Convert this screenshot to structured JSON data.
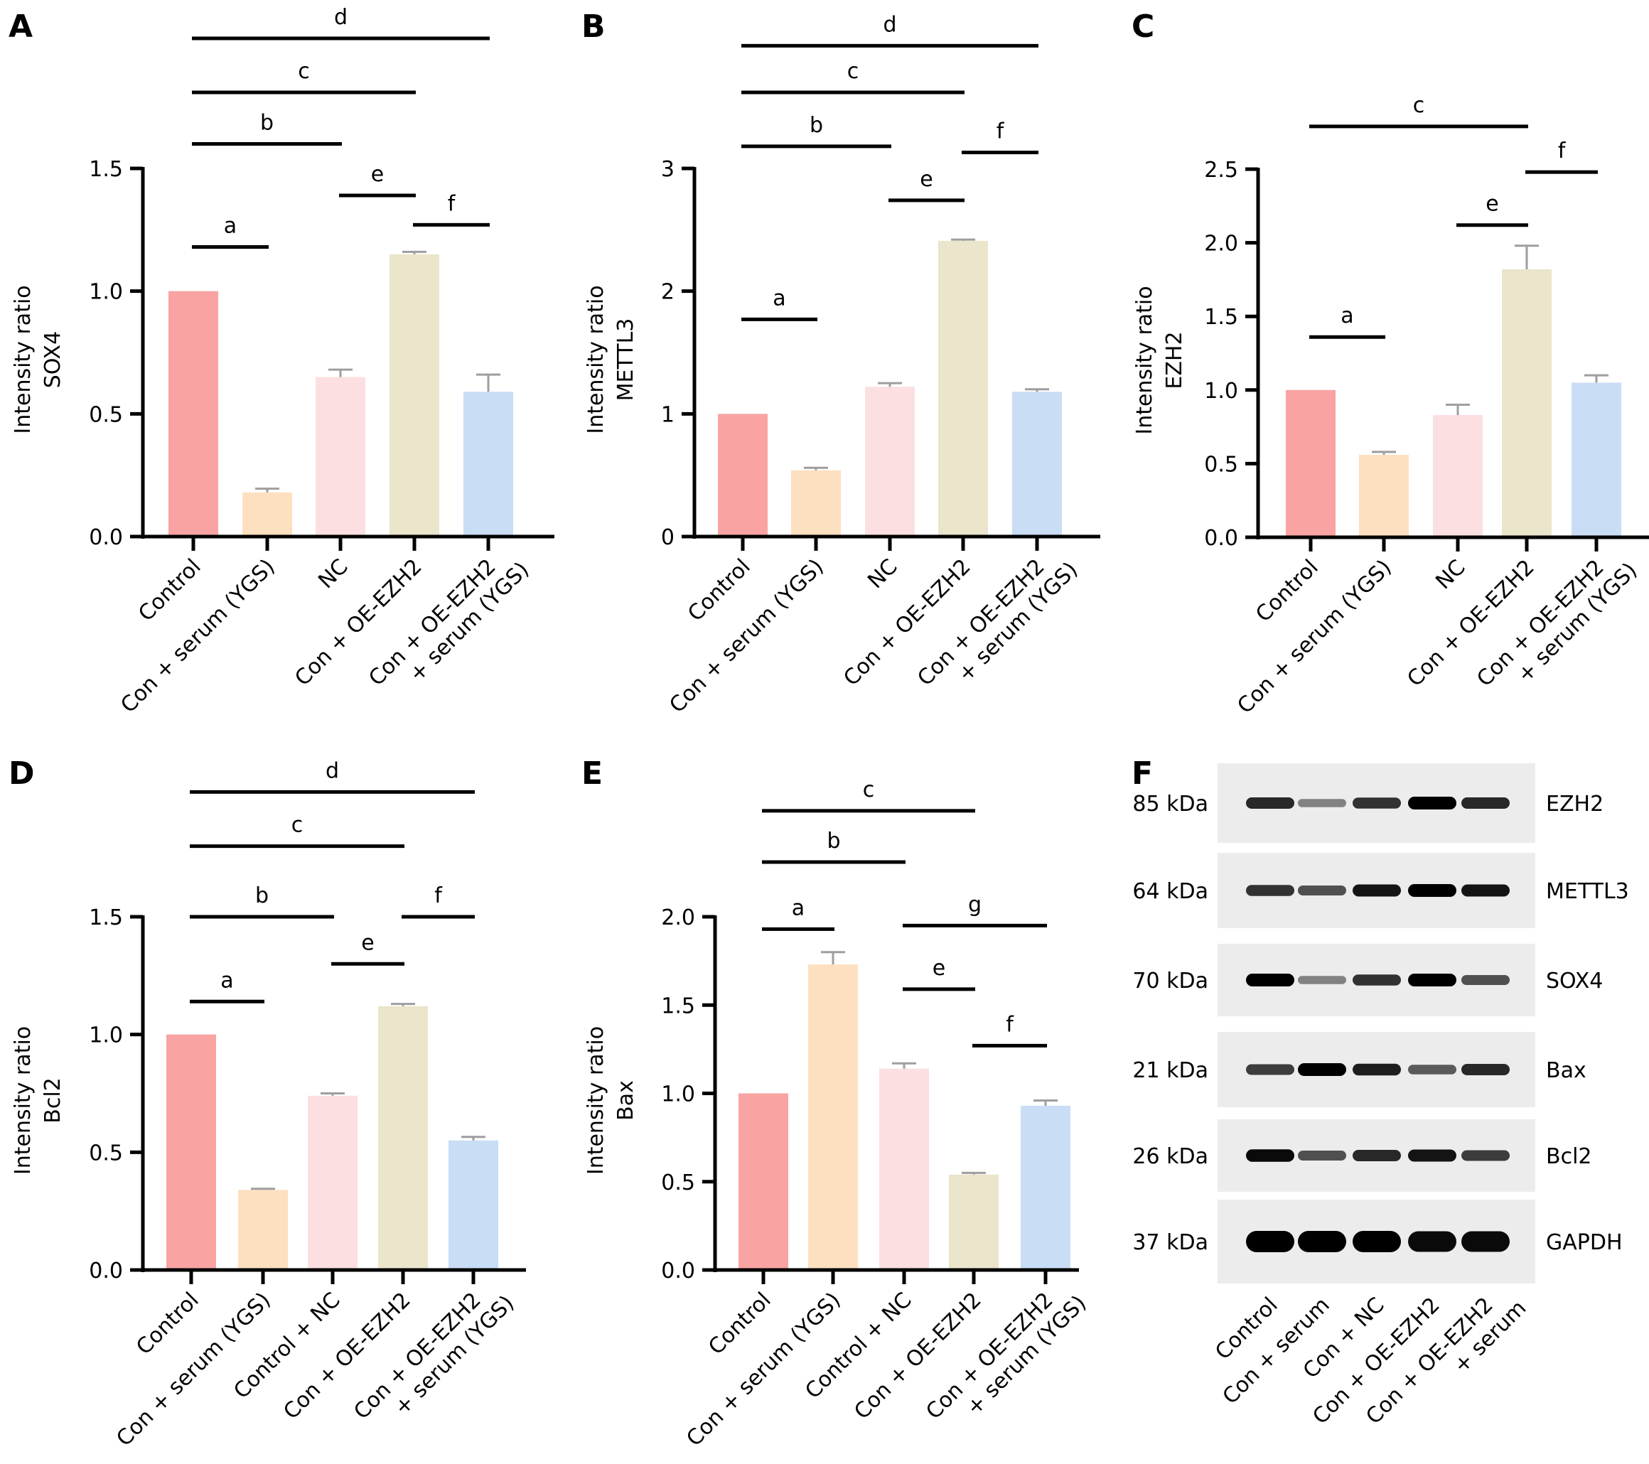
{
  "figure": {
    "colors": {
      "Control": "#F9A3A3",
      "Con + serum (YGS)": "#FDE0C0",
      "NC": "#FCDFE0",
      "Con + OE-EZH2": "#EAE5CB",
      "Con + OE-EZH2 + serum (YGS)": "#C9DDF5",
      "error_bar": "#9E9E9E",
      "axis": "#000000"
    }
  },
  "chart_data": [
    {
      "panel": "A",
      "type": "bar",
      "ylabel": [
        "Intensity ratio",
        "SOX4"
      ],
      "categories": [
        [
          "Control"
        ],
        [
          "Con + serum (YGS)"
        ],
        [
          "NC"
        ],
        [
          "Con + OE-EZH2"
        ],
        [
          "Con + OE-EZH2",
          "+ serum (YGS)"
        ]
      ],
      "values": [
        1.0,
        0.18,
        0.65,
        1.15,
        0.59
      ],
      "errors": [
        0.0,
        0.015,
        0.03,
        0.01,
        0.07
      ],
      "ylim": [
        0,
        1.5
      ],
      "yticks": [
        "0.0",
        "0.5",
        "1.0",
        "1.5"
      ],
      "ytick_values": [
        0,
        0.5,
        1.0,
        1.5
      ],
      "significance": [
        {
          "label": "a",
          "from": 0,
          "to": 1,
          "y": 1.18
        },
        {
          "label": "b",
          "from": 0,
          "to": 2,
          "y": 1.6
        },
        {
          "label": "c",
          "from": 0,
          "to": 3,
          "y": 1.81
        },
        {
          "label": "d",
          "from": 0,
          "to": 4,
          "y": 2.03
        },
        {
          "label": "e",
          "from": 2,
          "to": 3,
          "y": 1.39
        },
        {
          "label": "f",
          "from": 3,
          "to": 4,
          "y": 1.27
        }
      ]
    },
    {
      "panel": "B",
      "type": "bar",
      "ylabel": [
        "Intensity ratio",
        "METTL3"
      ],
      "categories": [
        [
          "Control"
        ],
        [
          "Con + serum (YGS)"
        ],
        [
          "NC"
        ],
        [
          "Con + OE-EZH2"
        ],
        [
          "Con + OE-EZH2",
          "+ serum (YGS)"
        ]
      ],
      "values": [
        1.0,
        0.54,
        1.22,
        2.41,
        1.18
      ],
      "errors": [
        0.0,
        0.02,
        0.03,
        0.01,
        0.02
      ],
      "ylim": [
        0,
        3
      ],
      "yticks": [
        "0",
        "1",
        "2",
        "3"
      ],
      "ytick_values": [
        0,
        1,
        2,
        3
      ],
      "significance": [
        {
          "label": "a",
          "from": 0,
          "to": 1,
          "y": 1.77
        },
        {
          "label": "b",
          "from": 0,
          "to": 2,
          "y": 3.18
        },
        {
          "label": "c",
          "from": 0,
          "to": 3,
          "y": 3.62
        },
        {
          "label": "d",
          "from": 0,
          "to": 4,
          "y": 4.0
        },
        {
          "label": "e",
          "from": 2,
          "to": 3,
          "y": 2.74
        },
        {
          "label": "f",
          "from": 3,
          "to": 4,
          "y": 3.13
        }
      ]
    },
    {
      "panel": "C",
      "type": "bar",
      "ylabel": [
        "Intensity ratio",
        "EZH2"
      ],
      "categories": [
        [
          "Control"
        ],
        [
          "Con + serum (YGS)"
        ],
        [
          "NC"
        ],
        [
          "Con + OE-EZH2"
        ],
        [
          "Con + OE-EZH2",
          "+ serum (YGS)"
        ]
      ],
      "values": [
        1.0,
        0.56,
        0.83,
        1.82,
        1.05
      ],
      "errors": [
        0.0,
        0.02,
        0.07,
        0.16,
        0.05
      ],
      "ylim": [
        0,
        2.5
      ],
      "yticks": [
        "0.0",
        "0.5",
        "1.0",
        "1.5",
        "2.0",
        "2.5"
      ],
      "ytick_values": [
        0,
        0.5,
        1.0,
        1.5,
        2.0,
        2.5
      ],
      "significance": [
        {
          "label": "a",
          "from": 0,
          "to": 1,
          "y": 1.36
        },
        {
          "label": "c",
          "from": 0,
          "to": 3,
          "y": 2.79
        },
        {
          "label": "e",
          "from": 2,
          "to": 3,
          "y": 2.12
        },
        {
          "label": "f",
          "from": 3,
          "to": 4,
          "y": 2.48
        }
      ]
    },
    {
      "panel": "D",
      "type": "bar",
      "ylabel": [
        "Intensity ratio",
        "Bcl2"
      ],
      "categories": [
        [
          "Control"
        ],
        [
          "Con + serum (YGS)"
        ],
        [
          "Control + NC"
        ],
        [
          "Con + OE-EZH2"
        ],
        [
          "Con + OE-EZH2",
          "+ serum (YGS)"
        ]
      ],
      "values": [
        1.0,
        0.34,
        0.74,
        1.12,
        0.55
      ],
      "errors": [
        0.0,
        0.005,
        0.01,
        0.01,
        0.015
      ],
      "ylim": [
        0,
        1.5
      ],
      "yticks": [
        "0.0",
        "0.5",
        "1.0",
        "1.5"
      ],
      "ytick_values": [
        0,
        0.5,
        1.0,
        1.5
      ],
      "significance": [
        {
          "label": "a",
          "from": 0,
          "to": 1,
          "y": 1.14
        },
        {
          "label": "b",
          "from": 0,
          "to": 2,
          "y": 1.5
        },
        {
          "label": "c",
          "from": 0,
          "to": 3,
          "y": 1.8
        },
        {
          "label": "d",
          "from": 0,
          "to": 4,
          "y": 2.03
        },
        {
          "label": "e",
          "from": 2,
          "to": 3,
          "y": 1.3
        },
        {
          "label": "f",
          "from": 3,
          "to": 4,
          "y": 1.5
        }
      ]
    },
    {
      "panel": "E",
      "type": "bar",
      "ylabel": [
        "Intensity ratio",
        "Bax"
      ],
      "categories": [
        [
          "Control"
        ],
        [
          "Con + serum (YGS)"
        ],
        [
          "Control + NC"
        ],
        [
          "Con + OE-EZH2"
        ],
        [
          "Con + OE-EZH2",
          "+ serum (YGS)"
        ]
      ],
      "values": [
        1.0,
        1.73,
        1.14,
        0.54,
        0.93
      ],
      "errors": [
        0.0,
        0.07,
        0.03,
        0.01,
        0.03
      ],
      "ylim": [
        0,
        2.0
      ],
      "yticks": [
        "0.0",
        "0.5",
        "1.0",
        "1.5",
        "2.0"
      ],
      "ytick_values": [
        0,
        0.5,
        1.0,
        1.5,
        2.0
      ],
      "significance": [
        {
          "label": "a",
          "from": 0,
          "to": 1,
          "y": 1.93
        },
        {
          "label": "b",
          "from": 0,
          "to": 2,
          "y": 2.31
        },
        {
          "label": "c",
          "from": 0,
          "to": 3,
          "y": 2.6
        },
        {
          "label": "e",
          "from": 2,
          "to": 3,
          "y": 1.59
        },
        {
          "label": "f",
          "from": 3,
          "to": 4,
          "y": 1.27
        },
        {
          "label": "g",
          "from": 2,
          "to": 4,
          "y": 1.95
        }
      ]
    }
  ],
  "blot": {
    "panel": "F",
    "rows": [
      {
        "marker": "85 kDa",
        "protein": "EZH2",
        "intensity": [
          0.8,
          0.35,
          0.75,
          1.0,
          0.8
        ]
      },
      {
        "marker": "64 kDa",
        "protein": "METTL3",
        "intensity": [
          0.75,
          0.6,
          0.9,
          1.0,
          0.9
        ]
      },
      {
        "marker": "70 kDa",
        "protein": "SOX4",
        "intensity": [
          1.0,
          0.35,
          0.75,
          1.0,
          0.6
        ]
      },
      {
        "marker": "21 kDa",
        "protein": "Bax",
        "intensity": [
          0.7,
          1.0,
          0.85,
          0.55,
          0.8
        ]
      },
      {
        "marker": "26 kDa",
        "protein": "Bcl2",
        "intensity": [
          0.95,
          0.6,
          0.8,
          0.9,
          0.7
        ]
      },
      {
        "marker": "37 kDa",
        "protein": "GAPDH",
        "intensity": [
          1.0,
          1.0,
          1.0,
          0.95,
          0.95
        ]
      }
    ],
    "lanes": [
      [
        "Control"
      ],
      [
        "Con + serum"
      ],
      [
        "Con + NC"
      ],
      [
        "Con + OE-EZH2"
      ],
      [
        "Con + OE-EZH2",
        "+ serum"
      ]
    ]
  }
}
